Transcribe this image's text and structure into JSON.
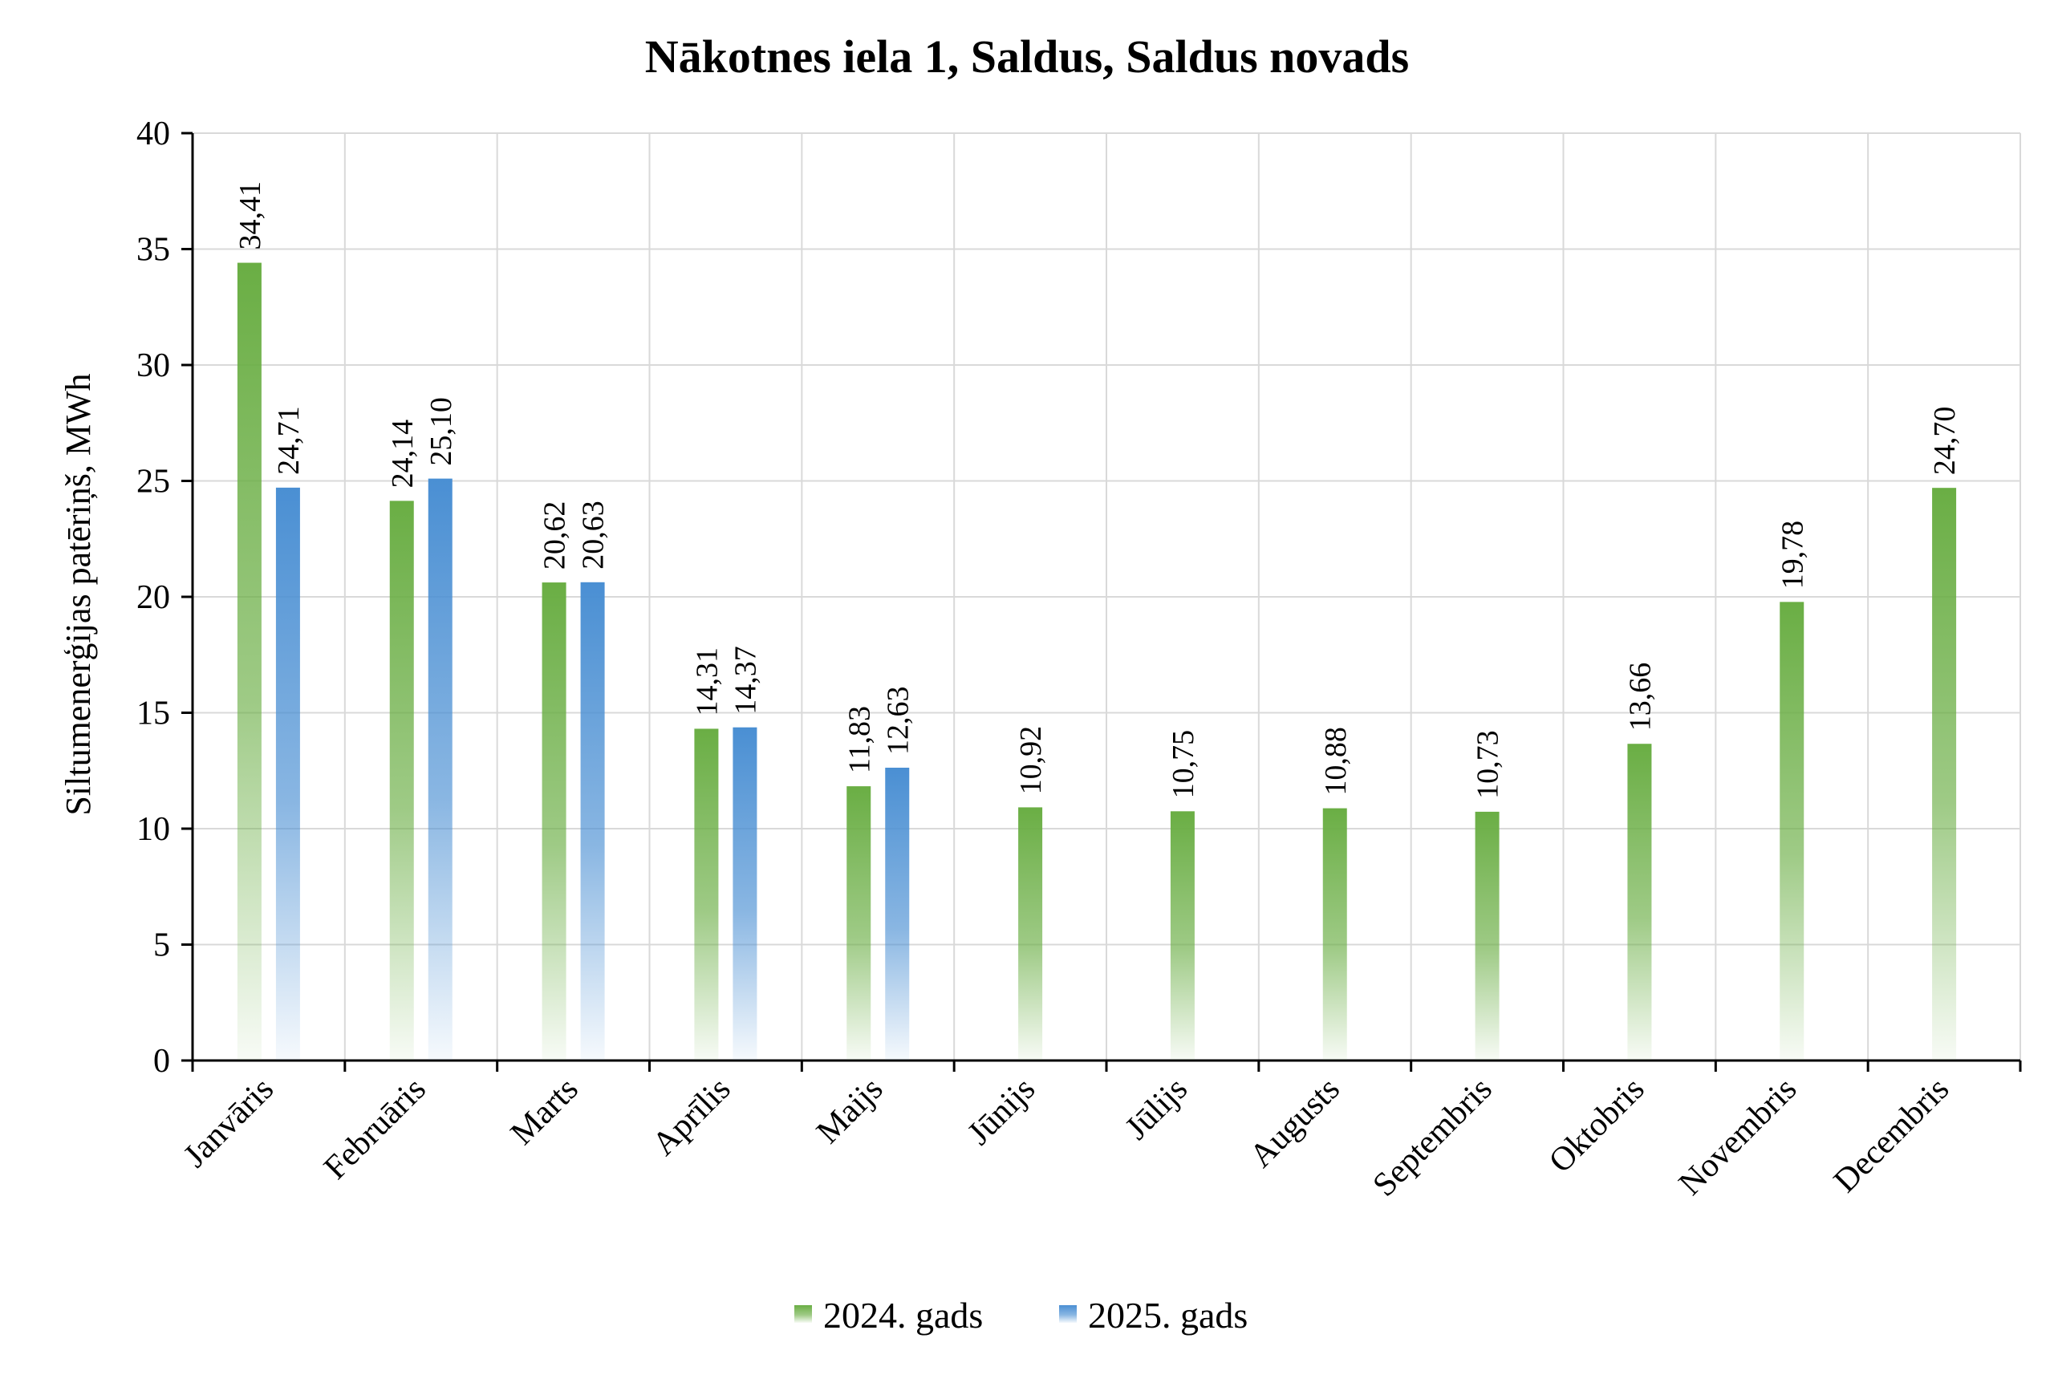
{
  "chart_data": {
    "type": "bar",
    "title": "Nākotnes iela 1, Saldus, Saldus novads",
    "ylabel": "Siltumenerģijas patēriņš, MWh",
    "xlabel": "",
    "ylim": [
      0,
      40
    ],
    "yticks": [
      0,
      5,
      10,
      15,
      20,
      25,
      30,
      35,
      40
    ],
    "grid": true,
    "legend_position": "bottom",
    "categories": [
      "Janvāris",
      "Februāris",
      "Marts",
      "Aprīlis",
      "Maijs",
      "Jūnijs",
      "Jūlijs",
      "Augusts",
      "Septembris",
      "Oktobris",
      "Novembris",
      "Decembris"
    ],
    "series": [
      {
        "name": "2024. gads",
        "color": "#6aae44",
        "values": [
          34.41,
          24.14,
          20.62,
          14.31,
          11.83,
          10.92,
          10.75,
          10.88,
          10.73,
          13.66,
          19.78,
          24.7
        ],
        "labels": [
          "34,41",
          "24,14",
          "20,62",
          "14,31",
          "11,83",
          "10,92",
          "10,75",
          "10,88",
          "10,73",
          "13,66",
          "19,78",
          "24,70"
        ]
      },
      {
        "name": "2025. gads",
        "color": "#4a8fd3",
        "values": [
          24.71,
          25.1,
          20.63,
          14.37,
          12.63,
          null,
          null,
          null,
          null,
          null,
          null,
          null
        ],
        "labels": [
          "24,71",
          "25,10",
          "20,63",
          "14,37",
          "12,63",
          null,
          null,
          null,
          null,
          null,
          null,
          null
        ]
      }
    ]
  }
}
